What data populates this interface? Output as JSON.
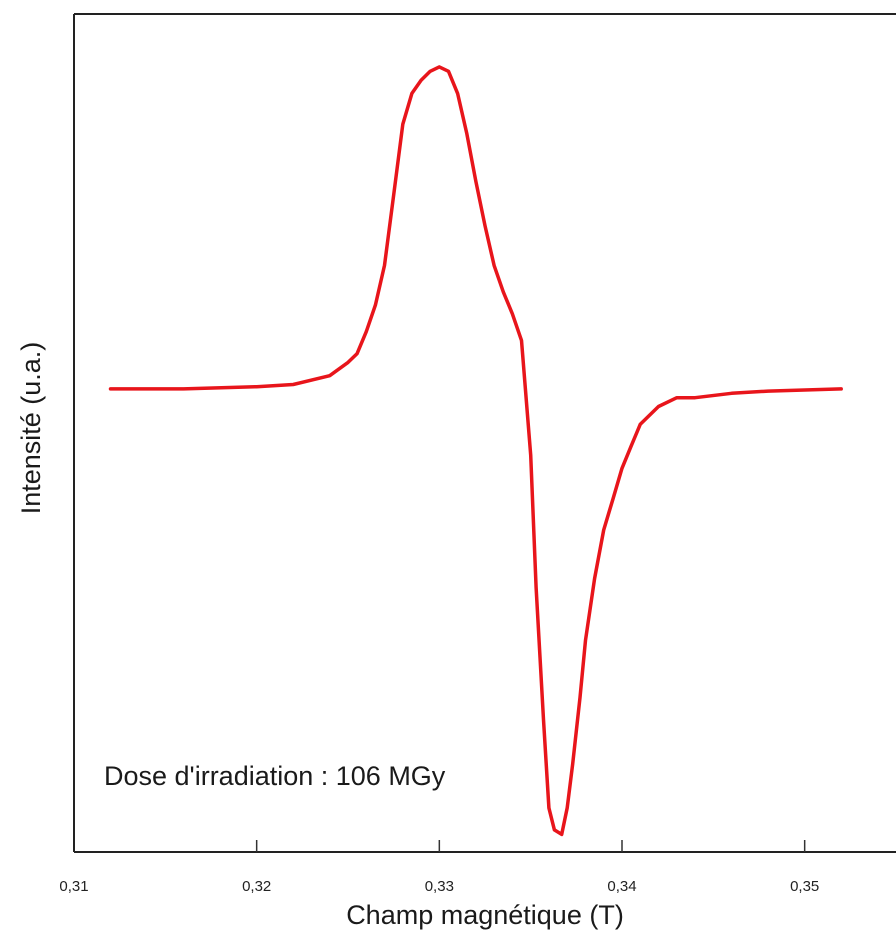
{
  "chart_data": {
    "type": "line",
    "title": "",
    "xlabel": "Champ magnétique (T)",
    "ylabel": "Intensité (u.a.)",
    "xlim": [
      0.31,
      0.355
    ],
    "ylim": [
      -1.05,
      0.85
    ],
    "x_ticks": [
      0.31,
      0.32,
      0.33,
      0.34,
      0.35
    ],
    "x_tick_labels": [
      "0,31",
      "0,32",
      "0,33",
      "0,34",
      "0,35"
    ],
    "y_ticks_shown": false,
    "grid": false,
    "legend": "none",
    "annotation": "Dose d'irradiation : 106 MGy",
    "series": [
      {
        "color": "#e8151b",
        "x": [
          0.312,
          0.316,
          0.32,
          0.322,
          0.324,
          0.325,
          0.3255,
          0.326,
          0.3265,
          0.327,
          0.3275,
          0.328,
          0.3285,
          0.329,
          0.3295,
          0.33,
          0.3305,
          0.331,
          0.3315,
          0.332,
          0.3325,
          0.333,
          0.3335,
          0.334,
          0.3345,
          0.335,
          0.3353,
          0.3357,
          0.336,
          0.3363,
          0.3367,
          0.337,
          0.3373,
          0.3377,
          0.338,
          0.3385,
          0.339,
          0.3395,
          0.34,
          0.3405,
          0.341,
          0.342,
          0.343,
          0.344,
          0.346,
          0.348,
          0.352
        ],
        "y": [
          0.0,
          0.0,
          0.005,
          0.01,
          0.03,
          0.06,
          0.08,
          0.13,
          0.19,
          0.28,
          0.44,
          0.6,
          0.67,
          0.7,
          0.72,
          0.73,
          0.72,
          0.67,
          0.58,
          0.47,
          0.37,
          0.28,
          0.22,
          0.17,
          0.11,
          -0.15,
          -0.45,
          -0.75,
          -0.95,
          -1.0,
          -1.01,
          -0.95,
          -0.85,
          -0.7,
          -0.57,
          -0.43,
          -0.32,
          -0.25,
          -0.18,
          -0.13,
          -0.08,
          -0.04,
          -0.02,
          -0.02,
          -0.01,
          -0.005,
          0.0
        ]
      }
    ]
  }
}
